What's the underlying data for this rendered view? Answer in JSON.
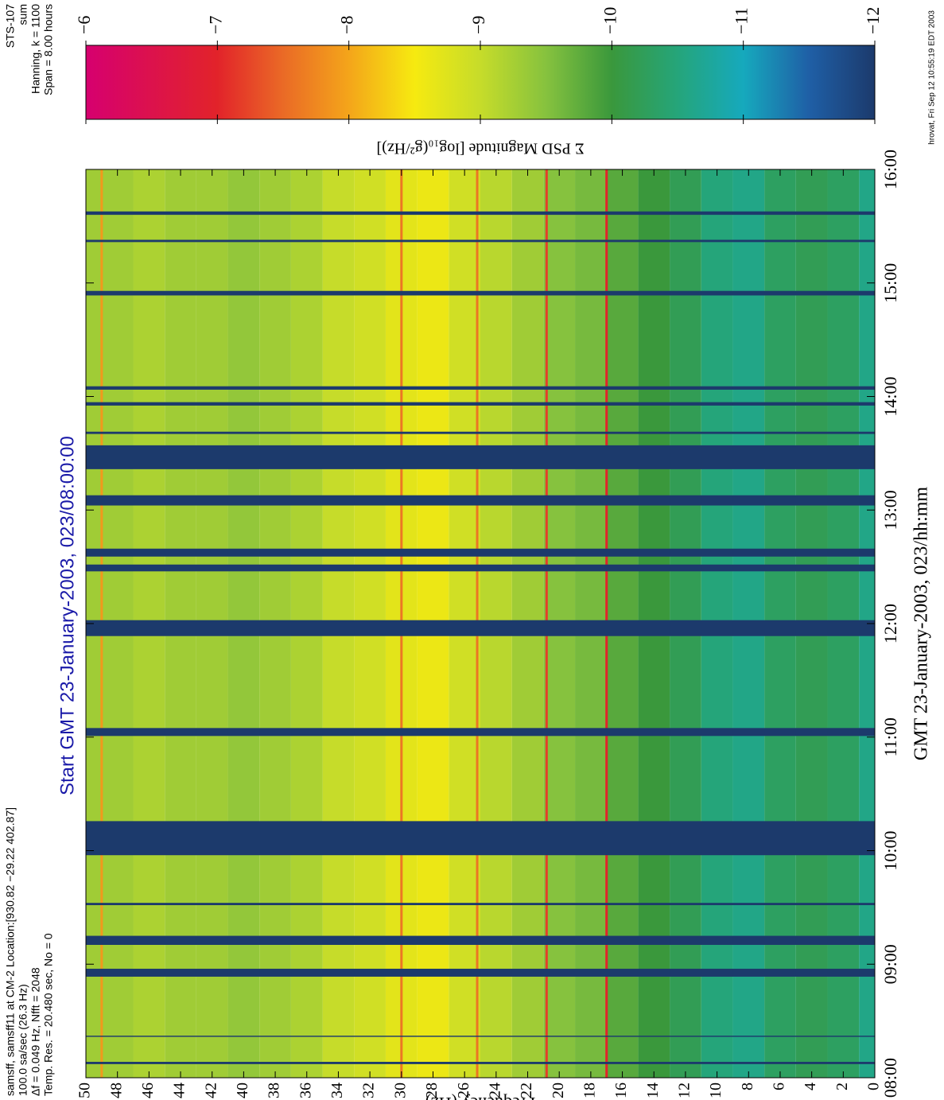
{
  "chart_data": {
    "type": "spectrogram",
    "info": [
      "samsff, samsff11 at CM-2 Location:[930.82 −29.22 402.87]",
      "100.0 sa/sec (26.3 Hz)",
      "Δf = 0.049 Hz, Nfft = 2048",
      "Temp. Res. = 20.480 sec, No = 0"
    ],
    "title": "Start GMT 23-January-2003, 023/08:00:00",
    "header_right": [
      "STS-107",
      "sum",
      "Hanning, k = 1100",
      "Span = 8.00 hours"
    ],
    "footer": "hrovat, Fri Sep 12 10:55:19 EDT 2003",
    "xlabel": "GMT 23-January-2003, 023/hh:mm",
    "ylabel": "Frequency (Hz)",
    "colorbar_label": "Σ PSD Magnitude [log₁₀(g²/Hz)]",
    "xlim": [
      8,
      16
    ],
    "xticks": [
      {
        "value": 8,
        "label": "08:00"
      },
      {
        "value": 9,
        "label": "09:00"
      },
      {
        "value": 10,
        "label": "10:00"
      },
      {
        "value": 11,
        "label": "11:00"
      },
      {
        "value": 12,
        "label": "12:00"
      },
      {
        "value": 13,
        "label": "13:00"
      },
      {
        "value": 14,
        "label": "14:00"
      },
      {
        "value": 15,
        "label": "15:00"
      },
      {
        "value": 16,
        "label": "16:00"
      }
    ],
    "ylim": [
      0,
      50
    ],
    "yticks": [
      0,
      2,
      4,
      6,
      8,
      10,
      12,
      14,
      16,
      18,
      20,
      22,
      24,
      26,
      28,
      30,
      32,
      34,
      36,
      38,
      40,
      42,
      44,
      46,
      48,
      50
    ],
    "clim": [
      -12,
      -6
    ],
    "cticks": [
      {
        "value": -6,
        "label": "−6"
      },
      {
        "value": -7,
        "label": "−7"
      },
      {
        "value": -8,
        "label": "−8"
      },
      {
        "value": -9,
        "label": "−9"
      },
      {
        "value": -10,
        "label": "−10"
      },
      {
        "value": -11,
        "label": "−11"
      },
      {
        "value": -12,
        "label": "−12"
      }
    ],
    "colorscale": [
      {
        "value": -12,
        "color": "#1c3a6c"
      },
      {
        "value": -11.5,
        "color": "#1f5fa6"
      },
      {
        "value": -11,
        "color": "#16a9bd"
      },
      {
        "value": -10.5,
        "color": "#25a57a"
      },
      {
        "value": -10,
        "color": "#3a983c"
      },
      {
        "value": -9.5,
        "color": "#86c23e"
      },
      {
        "value": -9,
        "color": "#c6dc2a"
      },
      {
        "value": -8.5,
        "color": "#f6ea10"
      },
      {
        "value": -8,
        "color": "#f4a51a"
      },
      {
        "value": -7.5,
        "color": "#ea6a26"
      },
      {
        "value": -7,
        "color": "#e2232a"
      },
      {
        "value": -6,
        "color": "#d6006f"
      }
    ],
    "spectrum": {
      "frequency": [
        0,
        2,
        4,
        6,
        8,
        10,
        12,
        14,
        16,
        18,
        20,
        22,
        24,
        26,
        28,
        30,
        32,
        34,
        36,
        38,
        40,
        42,
        44,
        46,
        48,
        50
      ],
      "magnitude": [
        -10.6,
        -10.3,
        -10.2,
        -10.3,
        -10.6,
        -10.5,
        -10.2,
        -10.0,
        -9.8,
        -9.6,
        -9.5,
        -9.3,
        -9.1,
        -8.9,
        -8.6,
        -8.7,
        -8.9,
        -9.0,
        -9.2,
        -9.3,
        -9.4,
        -9.3,
        -9.3,
        -9.2,
        -9.3,
        -9.3
      ]
    },
    "tones": {
      "frequency": [
        17,
        20.8,
        25.2,
        30,
        49
      ],
      "magnitude": [
        -7,
        -7.2,
        -7.6,
        -7.6,
        -7.9
      ]
    },
    "gap_color": "#1c3a6c",
    "data_gaps": [
      [
        8.12,
        8.14
      ],
      [
        8.36,
        8.37
      ],
      [
        8.89,
        8.96
      ],
      [
        9.17,
        9.25
      ],
      [
        9.52,
        9.54
      ],
      [
        9.96,
        10.26
      ],
      [
        11.01,
        11.08
      ],
      [
        11.89,
        12.03
      ],
      [
        12.46,
        12.52
      ],
      [
        12.59,
        12.66
      ],
      [
        13.04,
        13.13
      ],
      [
        13.36,
        13.57
      ],
      [
        13.67,
        13.69
      ],
      [
        13.92,
        13.95
      ],
      [
        14.06,
        14.09
      ],
      [
        14.89,
        14.93
      ],
      [
        15.36,
        15.38
      ],
      [
        15.6,
        15.63
      ]
    ]
  }
}
